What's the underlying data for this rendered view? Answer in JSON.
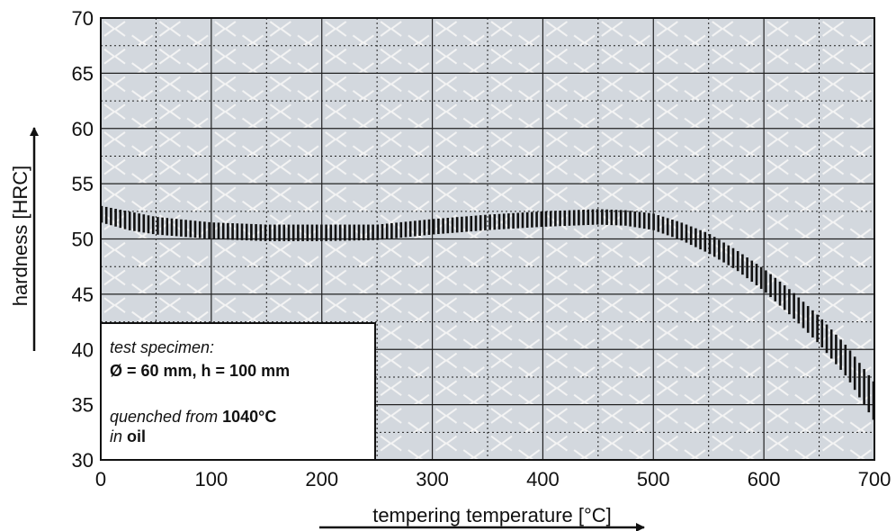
{
  "chart_data": {
    "type": "line",
    "xlabel": "tempering temperature [°C]",
    "ylabel": "hardness [HRC]",
    "xlim": [
      0,
      700
    ],
    "ylim": [
      30,
      70
    ],
    "xticks": [
      "0",
      "100",
      "200",
      "300",
      "400",
      "500",
      "600",
      "700"
    ],
    "yticks": [
      "30",
      "35",
      "40",
      "45",
      "50",
      "55",
      "60",
      "65",
      "70"
    ],
    "grid": true,
    "band": {
      "x": [
        0,
        25,
        50,
        100,
        150,
        200,
        250,
        300,
        350,
        400,
        450,
        475,
        500,
        525,
        550,
        575,
        600,
        625,
        650,
        675,
        700
      ],
      "upper": [
        53.0,
        52.5,
        52.0,
        51.5,
        51.3,
        51.3,
        51.3,
        51.8,
        52.2,
        52.5,
        52.7,
        52.6,
        52.3,
        51.5,
        50.5,
        49.0,
        47.3,
        45.3,
        43.0,
        40.3,
        37.0
      ],
      "lower": [
        51.5,
        50.8,
        50.4,
        50.0,
        49.8,
        49.8,
        49.9,
        50.4,
        50.8,
        51.1,
        51.3,
        51.2,
        50.8,
        49.9,
        48.7,
        47.2,
        45.3,
        43.0,
        40.5,
        37.5,
        33.5
      ]
    },
    "legend_box": {
      "line1": "test specimen:",
      "line2": "Ø = 60 mm, h = 100 mm",
      "line3_italic": "quenched from ",
      "line3_bold": "1040°C",
      "line4_italic": "in ",
      "line4_bold": "oil"
    },
    "colors": {
      "plot_bg": "#d3d8de",
      "band": "#111111",
      "grid": "#222222",
      "pattern": "#f2f2f2"
    }
  }
}
